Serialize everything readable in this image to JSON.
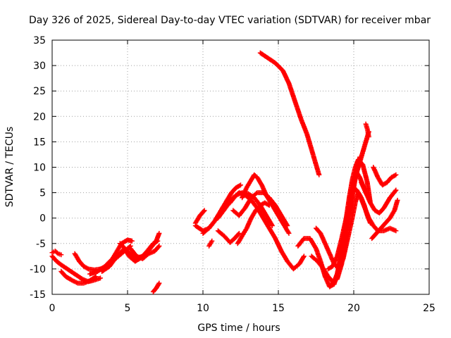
{
  "chart_data": {
    "type": "scatter",
    "title": "Day 326 of 2025, Sidereal Day-to-day VTEC variation (SDTVAR) for receiver mbar",
    "xlabel": "GPS time / hours",
    "ylabel": "SDTVAR / TECUs",
    "xlim": [
      0,
      25
    ],
    "ylim": [
      -15,
      35
    ],
    "xticks": [
      "0",
      "5",
      "10",
      "15",
      "20",
      "25"
    ],
    "yticks": [
      "-15",
      "-10",
      "-5",
      "0",
      "5",
      "10",
      "15",
      "20",
      "25",
      "30",
      "35"
    ],
    "grid": true,
    "marker": "plus",
    "color": "#ff0000",
    "series": [
      {
        "x": [
          0.0,
          0.3,
          0.6,
          1.0,
          1.5,
          2.0,
          2.4,
          2.8,
          3.2
        ],
        "y": [
          -7.5,
          -8.5,
          -9.2,
          -10.0,
          -11.0,
          -12.0,
          -12.5,
          -12.2,
          -11.8
        ]
      },
      {
        "x": [
          0.0,
          0.2,
          0.4,
          0.6
        ],
        "y": [
          -6.8,
          -6.5,
          -7.0,
          -7.2
        ]
      },
      {
        "x": [
          0.6,
          0.9,
          1.3,
          1.7,
          2.1,
          2.5,
          2.9
        ],
        "y": [
          -10.5,
          -11.5,
          -12.2,
          -12.8,
          -12.8,
          -12.3,
          -11.5
        ]
      },
      {
        "x": [
          1.5,
          1.8,
          2.1,
          2.4,
          2.8,
          3.2,
          3.6,
          4.0,
          4.4,
          4.8,
          5.2
        ],
        "y": [
          -7.0,
          -8.5,
          -9.5,
          -10.0,
          -10.2,
          -10.0,
          -9.5,
          -8.5,
          -7.5,
          -6.5,
          -5.5
        ]
      },
      {
        "x": [
          2.5,
          3.0,
          3.5,
          4.0,
          4.3,
          4.6,
          5.0,
          5.3
        ],
        "y": [
          -11.0,
          -10.5,
          -9.5,
          -8.0,
          -6.5,
          -5.0,
          -4.3,
          -4.5
        ]
      },
      {
        "x": [
          3.3,
          3.8,
          4.3,
          4.8,
          5.1,
          5.5,
          5.9,
          6.3,
          6.7,
          7.0
        ],
        "y": [
          -10.5,
          -9.5,
          -7.5,
          -6.0,
          -7.5,
          -8.5,
          -7.8,
          -6.5,
          -5.0,
          -4.5
        ]
      },
      {
        "x": [
          4.5,
          5.0,
          5.5,
          6.0,
          6.5,
          6.9,
          7.1
        ],
        "y": [
          -5.0,
          -6.5,
          -8.0,
          -7.5,
          -6.0,
          -4.5,
          -3.0
        ]
      },
      {
        "x": [
          5.2,
          5.6,
          6.0,
          6.4,
          6.8,
          7.1
        ],
        "y": [
          -6.0,
          -7.5,
          -8.0,
          -7.0,
          -6.5,
          -5.5
        ]
      },
      {
        "x": [
          6.7,
          6.9,
          7.1
        ],
        "y": [
          -14.5,
          -13.8,
          -12.8
        ]
      },
      {
        "x": [
          9.5,
          9.8,
          10.1
        ],
        "y": [
          -1.0,
          0.5,
          1.5
        ]
      },
      {
        "x": [
          9.5,
          10.0,
          10.4,
          10.8,
          11.2,
          11.6,
          11.9,
          12.2,
          12.5
        ],
        "y": [
          -1.5,
          -2.5,
          -2.0,
          -0.5,
          1.5,
          3.5,
          5.0,
          6.0,
          6.5
        ]
      },
      {
        "x": [
          10.0,
          10.4,
          10.8,
          11.2,
          11.6,
          11.9
        ],
        "y": [
          -3.0,
          -2.0,
          -0.5,
          1.5,
          3.5,
          5.0
        ]
      },
      {
        "x": [
          10.4,
          10.5,
          10.6
        ],
        "y": [
          -5.5,
          -5.0,
          -4.5
        ]
      },
      {
        "x": [
          11.0,
          11.5,
          12.0,
          12.4,
          12.8,
          13.2,
          13.6,
          14.0,
          14.4,
          14.8,
          15.2,
          15.6,
          16.0,
          16.4,
          16.7
        ],
        "y": [
          0.0,
          2.0,
          4.0,
          5.0,
          4.5,
          3.5,
          2.0,
          0.0,
          -2.0,
          -4.0,
          -6.5,
          -8.5,
          -10.0,
          -9.0,
          -7.5
        ]
      },
      {
        "x": [
          11.0,
          11.4,
          11.8,
          12.1,
          12.4
        ],
        "y": [
          -2.5,
          -3.5,
          -4.8,
          -4.0,
          -3.0
        ]
      },
      {
        "x": [
          11.8,
          12.2,
          12.6,
          13.0,
          13.4,
          13.8,
          14.2,
          14.6
        ],
        "y": [
          3.0,
          4.5,
          5.0,
          4.8,
          4.0,
          2.5,
          0.5,
          -1.5
        ]
      },
      {
        "x": [
          12.0,
          12.4,
          12.8,
          13.2,
          13.6,
          14.0,
          14.4,
          14.8,
          15.2,
          15.6
        ],
        "y": [
          1.5,
          0.5,
          2.0,
          4.0,
          5.0,
          5.0,
          4.0,
          2.5,
          0.5,
          -1.5
        ]
      },
      {
        "x": [
          12.3,
          12.6,
          12.9,
          13.2,
          13.5,
          13.8,
          14.1,
          14.4
        ],
        "y": [
          -5.0,
          -3.5,
          -2.0,
          0.0,
          1.5,
          2.5,
          3.0,
          2.5
        ]
      },
      {
        "x": [
          12.6,
          12.9,
          13.2,
          13.4,
          13.6,
          13.9,
          14.2,
          14.6,
          15.0,
          15.4,
          15.7
        ],
        "y": [
          4.0,
          6.0,
          7.5,
          8.5,
          8.0,
          6.5,
          4.5,
          2.5,
          0.5,
          -1.5,
          -3.0
        ]
      },
      {
        "x": [
          13.8,
          14.3,
          14.8,
          15.3,
          15.7,
          16.1,
          16.5,
          16.9,
          17.3,
          17.7
        ],
        "y": [
          32.5,
          31.5,
          30.5,
          29.0,
          26.5,
          23.0,
          19.5,
          16.5,
          12.5,
          8.5
        ]
      },
      {
        "x": [
          16.3,
          16.7,
          17.1,
          17.5,
          17.8,
          18.1,
          18.4,
          18.7,
          19.0,
          19.3,
          19.6,
          19.9,
          20.2,
          20.5,
          20.8,
          21.0
        ],
        "y": [
          -5.5,
          -4.0,
          -4.0,
          -6.0,
          -8.5,
          -11.5,
          -13.5,
          -13.0,
          -10.0,
          -5.0,
          0.0,
          5.0,
          9.0,
          12.0,
          15.0,
          17.0
        ]
      },
      {
        "x": [
          17.2,
          17.6,
          18.0,
          18.3,
          18.6,
          18.9,
          19.2,
          19.5,
          19.8,
          20.1,
          20.4
        ],
        "y": [
          -7.5,
          -8.5,
          -10.0,
          -11.5,
          -12.5,
          -12.0,
          -9.0,
          -4.0,
          2.0,
          8.0,
          12.0
        ]
      },
      {
        "x": [
          17.5,
          17.8,
          18.1,
          18.4,
          18.7,
          19.0,
          19.3,
          19.6,
          19.9,
          20.1,
          20.3,
          20.5,
          20.7,
          20.9,
          21.1
        ],
        "y": [
          -2.0,
          -3.0,
          -5.0,
          -7.0,
          -9.0,
          -10.0,
          -8.0,
          -4.0,
          0.0,
          3.0,
          5.0,
          4.0,
          2.5,
          0.5,
          -1.0
        ]
      },
      {
        "x": [
          18.3,
          18.6,
          18.9,
          19.2,
          19.5,
          19.8,
          20.0,
          20.2,
          20.4,
          20.6,
          20.8,
          21.0
        ],
        "y": [
          -10.0,
          -9.5,
          -7.5,
          -4.0,
          0.0,
          4.0,
          7.0,
          9.0,
          8.0,
          6.5,
          5.0,
          4.0
        ]
      },
      {
        "x": [
          18.5,
          18.7,
          18.9,
          19.1,
          19.3,
          19.5,
          19.7,
          19.9,
          20.1,
          20.3,
          20.6,
          20.9,
          21.1
        ],
        "y": [
          -13.0,
          -12.5,
          -11.0,
          -8.0,
          -4.0,
          0.0,
          4.0,
          7.5,
          10.0,
          11.5,
          10.5,
          7.0,
          3.0
        ]
      },
      {
        "x": [
          19.8,
          20.0,
          20.2,
          20.4,
          20.6,
          20.8,
          21.0,
          21.3,
          21.6,
          22.0,
          22.4,
          22.8
        ],
        "y": [
          5.0,
          6.0,
          5.5,
          4.5,
          3.0,
          1.5,
          0.0,
          -1.5,
          -2.5,
          -2.5,
          -2.0,
          -2.5
        ]
      },
      {
        "x": [
          20.5,
          20.8,
          21.1,
          21.4,
          21.7,
          22.0,
          22.4,
          22.8
        ],
        "y": [
          7.0,
          5.0,
          3.0,
          1.5,
          1.0,
          2.0,
          4.0,
          5.5
        ]
      },
      {
        "x": [
          20.8,
          20.9,
          21.0
        ],
        "y": [
          18.5,
          17.5,
          16.0
        ]
      },
      {
        "x": [
          21.3,
          21.6,
          21.9,
          22.2,
          22.5,
          22.8
        ],
        "y": [
          10.0,
          8.0,
          6.5,
          7.0,
          8.0,
          8.5
        ]
      },
      {
        "x": [
          21.2,
          21.5,
          21.8,
          22.1,
          22.4,
          22.7,
          22.9
        ],
        "y": [
          -4.0,
          -3.0,
          -2.0,
          -1.0,
          0.0,
          1.5,
          3.5
        ]
      }
    ]
  }
}
